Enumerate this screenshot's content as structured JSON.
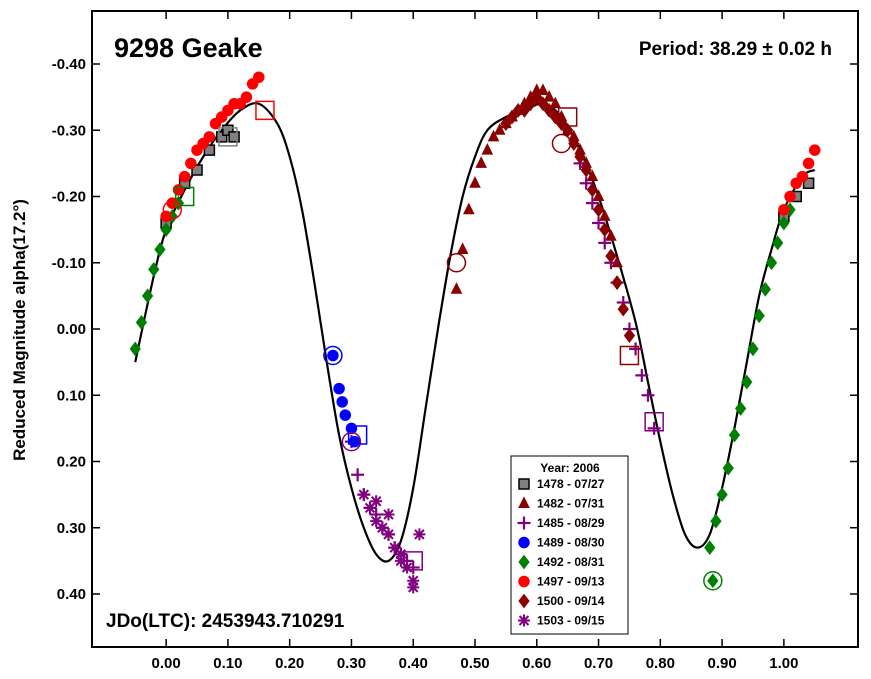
{
  "chart_data": {
    "type": "scatter",
    "title": "9298 Geake",
    "period_label": "Period: 38.29 ± 0.02 h",
    "epoch_label": "JDo(LTC): 2453943.710291",
    "xlabel": "",
    "ylabel": "Reduced Magnitude alpha(17.2°)",
    "xlim": [
      -0.12,
      1.12
    ],
    "ylim": [
      -0.48,
      0.48
    ],
    "y_inverted": true,
    "grid": false,
    "legend_placement": "bottom-center",
    "legend_title": "Year: 2006",
    "x_ticks": [
      0.0,
      0.1,
      0.2,
      0.3,
      0.4,
      0.5,
      0.6,
      0.7,
      0.8,
      0.9,
      1.0
    ],
    "x_tick_labels": [
      "0.00",
      "0.10",
      "0.20",
      "0.30",
      "0.40",
      "0.50",
      "0.60",
      "0.70",
      "0.80",
      "0.90",
      "1.00"
    ],
    "y_ticks": [
      -0.4,
      -0.3,
      -0.2,
      -0.1,
      0.0,
      0.1,
      0.2,
      0.3,
      0.4
    ],
    "y_tick_labels": [
      "-0.40",
      "-0.30",
      "-0.20",
      "-0.10",
      "0.00",
      "0.10",
      "0.20",
      "0.30",
      "0.40"
    ],
    "fit_curve": {
      "x": [
        -0.05,
        -0.02,
        0.0,
        0.03,
        0.06,
        0.09,
        0.12,
        0.15,
        0.18,
        0.2,
        0.22,
        0.24,
        0.26,
        0.28,
        0.3,
        0.32,
        0.34,
        0.36,
        0.38,
        0.4,
        0.42,
        0.44,
        0.46,
        0.48,
        0.5,
        0.52,
        0.55,
        0.58,
        0.61,
        0.64,
        0.67,
        0.7,
        0.73,
        0.76,
        0.78,
        0.8,
        0.82,
        0.84,
        0.86,
        0.88,
        0.9,
        0.92,
        0.94,
        0.96,
        0.98,
        1.0,
        1.03,
        1.05
      ],
      "y": [
        0.05,
        -0.08,
        -0.15,
        -0.21,
        -0.26,
        -0.3,
        -0.33,
        -0.34,
        -0.31,
        -0.26,
        -0.18,
        -0.07,
        0.05,
        0.16,
        0.24,
        0.3,
        0.34,
        0.35,
        0.32,
        0.24,
        0.12,
        0.0,
        -0.11,
        -0.2,
        -0.26,
        -0.3,
        -0.32,
        -0.33,
        -0.34,
        -0.32,
        -0.27,
        -0.2,
        -0.11,
        -0.01,
        0.08,
        0.17,
        0.25,
        0.31,
        0.33,
        0.31,
        0.24,
        0.15,
        0.05,
        -0.05,
        -0.12,
        -0.18,
        -0.23,
        -0.24
      ]
    },
    "series": [
      {
        "name": "1478 - 07/27",
        "marker": "square",
        "color": "#808080",
        "stroke": "#000000",
        "x": [
          0.0,
          0.03,
          0.05,
          0.07,
          0.09,
          0.1,
          0.11,
          1.0,
          1.02,
          1.04
        ],
        "y": [
          -0.16,
          -0.22,
          -0.24,
          -0.27,
          -0.29,
          -0.3,
          -0.29,
          -0.17,
          -0.2,
          -0.22
        ]
      },
      {
        "name": "1482 - 07/31",
        "marker": "triangle",
        "color": "#8B0000",
        "stroke": "#8B0000",
        "x": [
          0.47,
          0.48,
          0.49,
          0.5,
          0.51,
          0.52,
          0.53,
          0.54,
          0.55,
          0.56,
          0.57,
          0.58,
          0.59,
          0.6,
          0.61,
          0.62,
          0.63,
          0.64,
          0.65,
          0.66,
          0.67,
          0.68,
          0.69,
          0.7,
          0.71,
          0.72,
          0.73
        ],
        "y": [
          -0.06,
          -0.12,
          -0.18,
          -0.22,
          -0.25,
          -0.27,
          -0.29,
          -0.3,
          -0.31,
          -0.32,
          -0.33,
          -0.34,
          -0.35,
          -0.36,
          -0.36,
          -0.35,
          -0.34,
          -0.32,
          -0.3,
          -0.29,
          -0.27,
          -0.25,
          -0.23,
          -0.2,
          -0.17,
          -0.14,
          -0.1
        ]
      },
      {
        "name": "1485 - 08/29",
        "marker": "plus",
        "color": "#800080",
        "stroke": "#800080",
        "x": [
          0.3,
          0.31,
          0.32,
          0.33,
          0.34,
          0.35,
          0.36,
          0.37,
          0.38,
          0.39,
          0.4,
          0.67,
          0.68,
          0.69,
          0.7,
          0.71,
          0.72,
          0.73,
          0.74,
          0.75,
          0.76,
          0.77,
          0.78,
          0.79
        ],
        "y": [
          0.17,
          0.22,
          0.25,
          0.27,
          0.28,
          0.3,
          0.31,
          0.33,
          0.34,
          0.35,
          0.36,
          -0.25,
          -0.22,
          -0.19,
          -0.16,
          -0.13,
          -0.1,
          -0.07,
          -0.04,
          0.0,
          0.03,
          0.07,
          0.1,
          0.15
        ]
      },
      {
        "name": "1489 - 08/30",
        "marker": "circle",
        "color": "#0000FF",
        "stroke": "#0000FF",
        "x": [
          0.27,
          0.28,
          0.285,
          0.29,
          0.3,
          0.305
        ],
        "y": [
          0.04,
          0.09,
          0.11,
          0.13,
          0.15,
          0.17
        ]
      },
      {
        "name": "1492 - 08/31",
        "marker": "diamond",
        "color": "#008000",
        "stroke": "#008000",
        "x": [
          -0.05,
          -0.04,
          -0.03,
          -0.02,
          -0.01,
          0.0,
          0.01,
          0.02,
          0.88,
          0.89,
          0.9,
          0.91,
          0.92,
          0.93,
          0.94,
          0.95,
          0.96,
          0.97,
          0.98,
          0.99,
          1.0,
          1.01,
          0.885
        ],
        "y": [
          0.03,
          -0.01,
          -0.05,
          -0.09,
          -0.12,
          -0.15,
          -0.17,
          -0.19,
          0.33,
          0.29,
          0.25,
          0.21,
          0.16,
          0.12,
          0.08,
          0.03,
          -0.02,
          -0.06,
          -0.1,
          -0.13,
          -0.16,
          -0.18,
          0.38
        ]
      },
      {
        "name": "1497 - 09/13",
        "marker": "circle",
        "color": "#FF0000",
        "stroke": "#FF0000",
        "x": [
          0.0,
          0.01,
          0.02,
          0.03,
          0.04,
          0.05,
          0.06,
          0.07,
          0.08,
          0.09,
          0.1,
          0.11,
          0.12,
          0.13,
          0.14,
          0.15,
          1.0,
          1.01,
          1.02,
          1.03,
          1.04,
          1.05
        ],
        "y": [
          -0.17,
          -0.19,
          -0.21,
          -0.23,
          -0.25,
          -0.27,
          -0.28,
          -0.29,
          -0.31,
          -0.32,
          -0.33,
          -0.34,
          -0.34,
          -0.35,
          -0.37,
          -0.38,
          -0.18,
          -0.2,
          -0.22,
          -0.23,
          -0.25,
          -0.27
        ]
      },
      {
        "name": "1500 - 09/14",
        "marker": "diamond",
        "color": "#8B0000",
        "stroke": "#8B0000",
        "x": [
          0.55,
          0.56,
          0.57,
          0.58,
          0.59,
          0.6,
          0.61,
          0.62,
          0.63,
          0.64,
          0.65,
          0.66,
          0.67,
          0.68,
          0.69,
          0.7,
          0.71,
          0.72,
          0.73,
          0.74,
          0.75
        ],
        "y": [
          -0.31,
          -0.32,
          -0.33,
          -0.33,
          -0.34,
          -0.35,
          -0.34,
          -0.33,
          -0.32,
          -0.31,
          -0.3,
          -0.28,
          -0.26,
          -0.24,
          -0.21,
          -0.18,
          -0.15,
          -0.11,
          -0.07,
          -0.03,
          0.01
        ]
      },
      {
        "name": "1503 - 09/15",
        "marker": "asterisk",
        "color": "#800080",
        "stroke": "#800080",
        "x": [
          0.32,
          0.33,
          0.34,
          0.35,
          0.36,
          0.37,
          0.38,
          0.39,
          0.4,
          0.41,
          0.34,
          0.36,
          0.38,
          0.4
        ],
        "y": [
          0.25,
          0.27,
          0.29,
          0.3,
          0.31,
          0.33,
          0.34,
          0.36,
          0.38,
          0.31,
          0.26,
          0.28,
          0.35,
          0.39
        ]
      }
    ],
    "open_markers": [
      {
        "series": "1478 - 07/27",
        "shape": "square",
        "x": 0.1,
        "y": -0.29
      },
      {
        "series": "1482 - 07/31",
        "shape": "circle",
        "x": 0.47,
        "y": -0.1
      },
      {
        "series": "1482 - 07/31",
        "shape": "square",
        "x": 0.65,
        "y": -0.32
      },
      {
        "series": "1482 - 07/31",
        "shape": "circle",
        "x": 0.64,
        "y": -0.28
      },
      {
        "series": "1482 - 07/31",
        "shape": "square",
        "x": 0.75,
        "y": 0.04
      },
      {
        "series": "1485 - 08/29",
        "shape": "square",
        "x": 0.79,
        "y": 0.14
      },
      {
        "series": "1485 - 08/29",
        "shape": "circle",
        "x": 0.3,
        "y": 0.17
      },
      {
        "series": "1485 - 08/29",
        "shape": "square",
        "x": 0.4,
        "y": 0.35
      },
      {
        "series": "1489 - 08/30",
        "shape": "circle",
        "x": 0.27,
        "y": 0.04
      },
      {
        "series": "1489 - 08/30",
        "shape": "square",
        "x": 0.31,
        "y": 0.16
      },
      {
        "series": "1492 - 08/31",
        "shape": "circle",
        "x": 0.885,
        "y": 0.38
      },
      {
        "series": "1492 - 08/31",
        "shape": "square",
        "x": 0.03,
        "y": -0.2
      },
      {
        "series": "1497 - 09/13",
        "shape": "square",
        "x": 0.16,
        "y": -0.33
      },
      {
        "series": "1497 - 09/13",
        "shape": "circle",
        "x": 0.01,
        "y": -0.18
      }
    ]
  }
}
